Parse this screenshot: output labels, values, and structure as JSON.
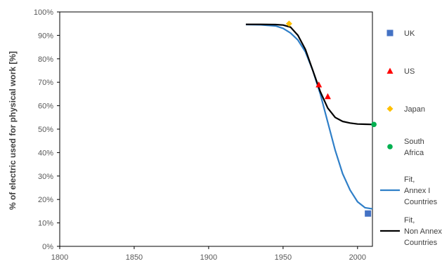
{
  "chart_data": {
    "type": "line",
    "title": "",
    "xlabel": "",
    "ylabel": "% of electric used for physical work [%]",
    "xlim": [
      1800,
      2010
    ],
    "ylim": [
      0,
      100
    ],
    "x_ticks": [
      "1800",
      "1850",
      "1900",
      "1950",
      "2000"
    ],
    "y_ticks": [
      "0%",
      "10%",
      "20%",
      "30%",
      "40%",
      "50%",
      "60%",
      "70%",
      "80%",
      "90%",
      "100%"
    ],
    "grid": false,
    "legend_position": "right",
    "series": [
      {
        "name": "UK",
        "kind": "scatter",
        "marker": "square",
        "color": "#4472c4",
        "points": [
          [
            2007,
            14
          ]
        ]
      },
      {
        "name": "US",
        "kind": "scatter",
        "marker": "triangle",
        "color": "#ff0000",
        "points": [
          [
            1974,
            69
          ],
          [
            1980,
            64
          ]
        ]
      },
      {
        "name": "Japan",
        "kind": "scatter",
        "marker": "diamond",
        "color": "#ffc000",
        "points": [
          [
            1954,
            95
          ]
        ]
      },
      {
        "name": "South Africa",
        "kind": "scatter",
        "marker": "circle",
        "color": "#00b050",
        "points": [
          [
            2011,
            52
          ]
        ]
      },
      {
        "name": "Fit, Annex I Countries",
        "kind": "line",
        "color": "#2f7fc8",
        "points": [
          [
            1925,
            94.6
          ],
          [
            1935,
            94.5
          ],
          [
            1945,
            94
          ],
          [
            1950,
            93
          ],
          [
            1955,
            91
          ],
          [
            1960,
            88
          ],
          [
            1965,
            83
          ],
          [
            1970,
            75
          ],
          [
            1975,
            65
          ],
          [
            1980,
            53
          ],
          [
            1985,
            41
          ],
          [
            1990,
            31
          ],
          [
            1995,
            24
          ],
          [
            2000,
            19
          ],
          [
            2005,
            16.5
          ],
          [
            2010,
            16
          ]
        ]
      },
      {
        "name": "Fit, Non Annex I Countries",
        "kind": "line",
        "color": "#000000",
        "points": [
          [
            1925,
            94.7
          ],
          [
            1935,
            94.7
          ],
          [
            1945,
            94.6
          ],
          [
            1950,
            94.4
          ],
          [
            1955,
            93.5
          ],
          [
            1960,
            90
          ],
          [
            1965,
            84
          ],
          [
            1970,
            75
          ],
          [
            1975,
            66
          ],
          [
            1980,
            59
          ],
          [
            1985,
            55
          ],
          [
            1990,
            53.3
          ],
          [
            1995,
            52.6
          ],
          [
            2000,
            52.2
          ],
          [
            2005,
            52.1
          ],
          [
            2010,
            52
          ]
        ]
      }
    ]
  }
}
